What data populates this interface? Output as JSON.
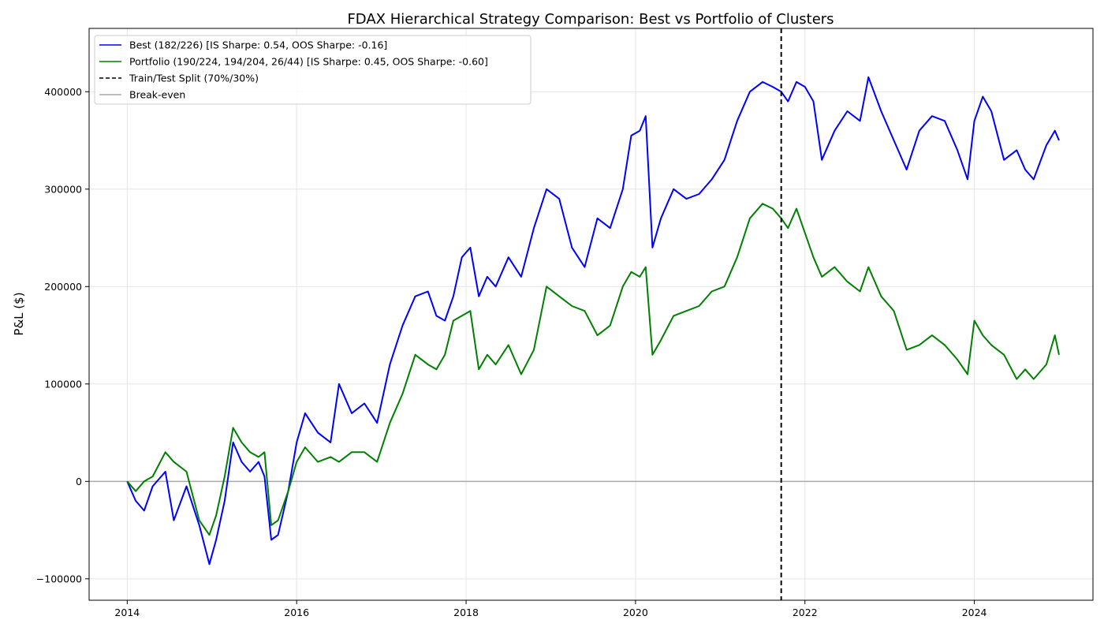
{
  "chart_data": {
    "type": "line",
    "title": "FDAX Hierarchical Strategy Comparison: Best vs Portfolio of Clusters",
    "xlabel": "",
    "ylabel": "P&L ($)",
    "xlim": [
      2013.55,
      2025.4
    ],
    "ylim": [
      -122000,
      465000
    ],
    "x_ticks": [
      2014,
      2016,
      2018,
      2020,
      2022,
      2024
    ],
    "x_tick_labels": [
      "2014",
      "2016",
      "2018",
      "2020",
      "2022",
      "2024"
    ],
    "y_ticks": [
      -100000,
      0,
      100000,
      200000,
      300000,
      400000
    ],
    "y_tick_labels": [
      "−100000",
      "0",
      "100000",
      "200000",
      "300000",
      "400000"
    ],
    "grid": true,
    "legend_position": "top-left",
    "series": [
      {
        "name": "Best (182/226) [IS Sharpe: 0.54, OOS Sharpe: -0.16]",
        "color": "#0000ff",
        "style": "solid",
        "x": [
          2014.0,
          2014.1,
          2014.2,
          2014.3,
          2014.45,
          2014.55,
          2014.7,
          2014.85,
          2014.97,
          2015.05,
          2015.15,
          2015.25,
          2015.35,
          2015.45,
          2015.55,
          2015.62,
          2015.7,
          2015.78,
          2015.9,
          2016.0,
          2016.1,
          2016.25,
          2016.4,
          2016.5,
          2016.65,
          2016.8,
          2016.95,
          2017.1,
          2017.25,
          2017.4,
          2017.55,
          2017.65,
          2017.75,
          2017.85,
          2017.95,
          2018.05,
          2018.15,
          2018.25,
          2018.35,
          2018.5,
          2018.65,
          2018.8,
          2018.95,
          2019.1,
          2019.25,
          2019.4,
          2019.55,
          2019.7,
          2019.85,
          2019.95,
          2020.05,
          2020.12,
          2020.2,
          2020.3,
          2020.45,
          2020.6,
          2020.75,
          2020.9,
          2021.05,
          2021.2,
          2021.35,
          2021.5,
          2021.62,
          2021.72,
          2021.8,
          2021.9,
          2022.0,
          2022.1,
          2022.2,
          2022.35,
          2022.5,
          2022.65,
          2022.75,
          2022.9,
          2023.05,
          2023.2,
          2023.35,
          2023.5,
          2023.65,
          2023.8,
          2023.92,
          2024.0,
          2024.1,
          2024.2,
          2024.35,
          2024.5,
          2024.6,
          2024.7,
          2024.85,
          2024.95,
          2025.0
        ],
        "values": [
          0,
          -20000,
          -30000,
          -5000,
          10000,
          -40000,
          -5000,
          -45000,
          -85000,
          -60000,
          -20000,
          40000,
          20000,
          10000,
          20000,
          5000,
          -60000,
          -55000,
          -10000,
          40000,
          70000,
          50000,
          40000,
          100000,
          70000,
          80000,
          60000,
          120000,
          160000,
          190000,
          195000,
          170000,
          165000,
          190000,
          230000,
          240000,
          190000,
          210000,
          200000,
          230000,
          210000,
          260000,
          300000,
          290000,
          240000,
          220000,
          270000,
          260000,
          300000,
          355000,
          360000,
          375000,
          240000,
          270000,
          300000,
          290000,
          295000,
          310000,
          330000,
          370000,
          400000,
          410000,
          405000,
          400000,
          390000,
          410000,
          405000,
          390000,
          330000,
          360000,
          380000,
          370000,
          415000,
          380000,
          350000,
          320000,
          360000,
          375000,
          370000,
          340000,
          310000,
          370000,
          395000,
          380000,
          330000,
          340000,
          320000,
          310000,
          345000,
          360000,
          350000
        ]
      },
      {
        "name": "Portfolio (190/224, 194/204, 26/44) [IS Sharpe: 0.45, OOS Sharpe: -0.60]",
        "color": "#008000",
        "style": "solid",
        "x": [
          2014.0,
          2014.1,
          2014.2,
          2014.3,
          2014.45,
          2014.55,
          2014.7,
          2014.85,
          2014.97,
          2015.05,
          2015.15,
          2015.25,
          2015.35,
          2015.45,
          2015.55,
          2015.62,
          2015.7,
          2015.78,
          2015.9,
          2016.0,
          2016.1,
          2016.25,
          2016.4,
          2016.5,
          2016.65,
          2016.8,
          2016.95,
          2017.1,
          2017.25,
          2017.4,
          2017.55,
          2017.65,
          2017.75,
          2017.85,
          2017.95,
          2018.05,
          2018.15,
          2018.25,
          2018.35,
          2018.5,
          2018.65,
          2018.8,
          2018.95,
          2019.1,
          2019.25,
          2019.4,
          2019.55,
          2019.7,
          2019.85,
          2019.95,
          2020.05,
          2020.12,
          2020.2,
          2020.3,
          2020.45,
          2020.6,
          2020.75,
          2020.9,
          2021.05,
          2021.2,
          2021.35,
          2021.5,
          2021.62,
          2021.72,
          2021.8,
          2021.9,
          2022.0,
          2022.1,
          2022.2,
          2022.35,
          2022.5,
          2022.65,
          2022.75,
          2022.9,
          2023.05,
          2023.2,
          2023.35,
          2023.5,
          2023.65,
          2023.8,
          2023.92,
          2024.0,
          2024.1,
          2024.2,
          2024.35,
          2024.5,
          2024.6,
          2024.7,
          2024.85,
          2024.95,
          2025.0
        ],
        "values": [
          0,
          -10000,
          0,
          5000,
          30000,
          20000,
          10000,
          -40000,
          -55000,
          -35000,
          5000,
          55000,
          40000,
          30000,
          25000,
          30000,
          -45000,
          -40000,
          -10000,
          20000,
          35000,
          20000,
          25000,
          20000,
          30000,
          30000,
          20000,
          60000,
          90000,
          130000,
          120000,
          115000,
          130000,
          165000,
          170000,
          175000,
          115000,
          130000,
          120000,
          140000,
          110000,
          135000,
          200000,
          190000,
          180000,
          175000,
          150000,
          160000,
          200000,
          215000,
          210000,
          220000,
          130000,
          145000,
          170000,
          175000,
          180000,
          195000,
          200000,
          230000,
          270000,
          285000,
          280000,
          270000,
          260000,
          280000,
          255000,
          230000,
          210000,
          220000,
          205000,
          195000,
          220000,
          190000,
          175000,
          135000,
          140000,
          150000,
          140000,
          125000,
          110000,
          165000,
          150000,
          140000,
          130000,
          105000,
          115000,
          105000,
          120000,
          150000,
          130000
        ]
      }
    ],
    "annotations": [
      {
        "type": "vline",
        "x": 2021.72,
        "color": "#000000",
        "style": "dashed",
        "label": "Train/Test Split (70%/30%)"
      },
      {
        "type": "hline",
        "y": 0,
        "color": "#aaaaaa",
        "style": "solid",
        "label": "Break-even"
      }
    ]
  }
}
